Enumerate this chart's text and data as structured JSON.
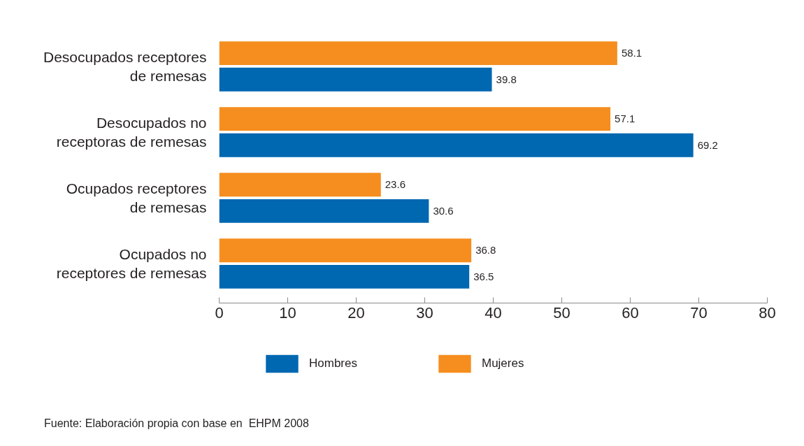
{
  "chart_data": {
    "type": "bar",
    "orientation": "horizontal",
    "categories": [
      "Desocupados receptores\nde remesas",
      "Desocupados no\nreceptoras de remesas",
      "Ocupados receptores\nde remesas",
      "Ocupados no\nreceptores de remesas"
    ],
    "series": [
      {
        "name": "Hombres",
        "color": "#0067b1",
        "values": [
          39.8,
          69.2,
          30.6,
          36.5
        ]
      },
      {
        "name": "Mujeres",
        "color": "#f58e1f",
        "values": [
          58.1,
          57.1,
          23.6,
          36.8
        ]
      }
    ],
    "xlim": [
      0,
      80
    ],
    "xticks": [
      0,
      10,
      20,
      30,
      40,
      50,
      60,
      70,
      80
    ],
    "data_labels": true,
    "legend": "bottom",
    "annotations": [
      "Fuente: Elaboración propia con base en  EHPM 2008"
    ]
  }
}
